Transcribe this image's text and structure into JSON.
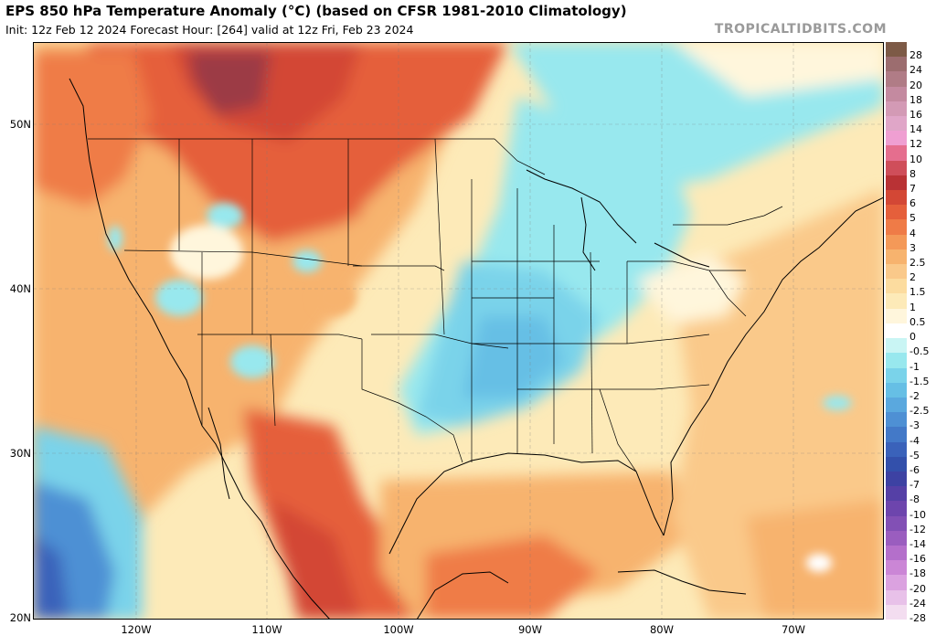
{
  "header": {
    "title": "EPS 850 hPa Temperature Anomaly (°C) (based on CFSR 1981-2010 Climatology)",
    "subtitle": "Init: 12z Feb 12 2024   Forecast Hour: [264]   valid at 12z Fri, Feb 23 2024",
    "brand": "TROPICALTIDBITS.COM"
  },
  "axes": {
    "lat_labels": [
      "50N",
      "40N",
      "30N",
      "20N"
    ],
    "lon_labels": [
      "120W",
      "110W",
      "100W",
      "90W",
      "80W",
      "70W"
    ]
  },
  "colorbar": {
    "labels": [
      "28",
      "24",
      "20",
      "18",
      "16",
      "14",
      "12",
      "10",
      "8",
      "7",
      "6",
      "5",
      "4",
      "3",
      "2.5",
      "2",
      "1.5",
      "1",
      "0.5",
      "0",
      "-0.5",
      "-1",
      "-1.5",
      "-2",
      "-2.5",
      "-3",
      "-4",
      "-5",
      "-6",
      "-7",
      "-8",
      "-10",
      "-12",
      "-14",
      "-16",
      "-18",
      "-20",
      "-24",
      "-28"
    ],
    "colors": [
      "#7d5a46",
      "#9c6d6f",
      "#b07c86",
      "#c48aa0",
      "#d39ab5",
      "#e0a6c8",
      "#ef9fd2",
      "#e56e8e",
      "#cf4e5a",
      "#b93235",
      "#d34735",
      "#e55f3b",
      "#ef7b47",
      "#f49958",
      "#f7b36e",
      "#fac98a",
      "#fcdc9f",
      "#fdeab8",
      "#fff6dc",
      "#ffffff",
      "#c9f5f4",
      "#98e8ee",
      "#7ad3ea",
      "#66bfe5",
      "#5aa8de",
      "#4e90d4",
      "#4379c8",
      "#3a62ba",
      "#3350ab",
      "#3d42a3",
      "#5540a6",
      "#6d45ad",
      "#8250b5",
      "#9a5dbf",
      "#b46fcb",
      "#cb86d6",
      "#dba2e0",
      "#e8c1e9",
      "#f3ddf0"
    ]
  },
  "map_layers": {
    "anomaly_regions": [
      {
        "name": "warm-anomaly-northern-plains",
        "value": 5
      },
      {
        "name": "warm-anomaly-pacific-northwest",
        "value": 3
      },
      {
        "name": "cool-anomaly-midwest-southeast",
        "value": -1
      },
      {
        "name": "cool-anomaly-eastern-pacific",
        "value": -3
      },
      {
        "name": "cool-anomaly-canadian-arctic",
        "value": -1
      },
      {
        "name": "warm-anomaly-mexico",
        "value": 4
      },
      {
        "name": "warm-anomaly-gulf",
        "value": 2
      },
      {
        "name": "warm-anomaly-atlantic",
        "value": 1
      }
    ]
  }
}
